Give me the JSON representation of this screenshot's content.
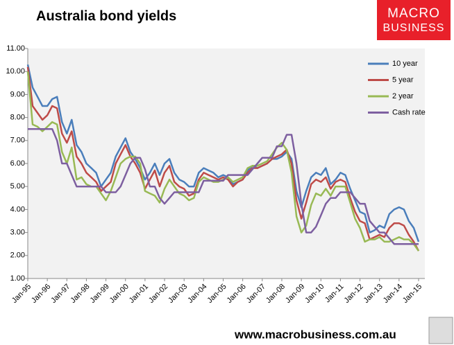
{
  "chart_data": {
    "type": "line",
    "title": "Australia bond yields",
    "categories": [
      "Jan-95",
      null,
      null,
      null,
      "Jan-96",
      null,
      null,
      null,
      "Jan-97",
      null,
      null,
      null,
      "Jan-98",
      null,
      null,
      null,
      "Jan-99",
      null,
      null,
      null,
      "Jan-00",
      null,
      null,
      null,
      "Jan-01",
      null,
      null,
      null,
      "Jan-02",
      null,
      null,
      null,
      "Jan-03",
      null,
      null,
      null,
      "Jan-04",
      null,
      null,
      null,
      "Jan-05",
      null,
      null,
      null,
      "Jan-06",
      null,
      null,
      null,
      "Jan-07",
      null,
      null,
      null,
      "Jan-08",
      null,
      null,
      null,
      "Jan-09",
      null,
      null,
      null,
      "Jan-10",
      null,
      null,
      null,
      "Jan-11",
      null,
      null,
      null,
      "Jan-12",
      null,
      null,
      null,
      "Jan-13",
      null,
      null,
      null,
      "Jan-14",
      null,
      null,
      null,
      "Jan-15"
    ],
    "series": [
      {
        "name": "10 year",
        "color": "#4a7ebb",
        "values": [
          10.3,
          9.3,
          8.9,
          8.5,
          8.5,
          8.8,
          8.9,
          7.8,
          7.3,
          7.9,
          6.8,
          6.5,
          6.0,
          5.8,
          5.6,
          5.0,
          5.3,
          5.6,
          6.3,
          6.7,
          7.1,
          6.5,
          6.2,
          5.8,
          5.3,
          5.6,
          6.0,
          5.5,
          6.0,
          6.2,
          5.6,
          5.3,
          5.2,
          5.0,
          5.0,
          5.6,
          5.8,
          5.7,
          5.6,
          5.4,
          5.5,
          5.4,
          5.1,
          5.2,
          5.3,
          5.7,
          5.9,
          5.8,
          5.9,
          6.0,
          6.2,
          6.2,
          6.3,
          6.5,
          6.2,
          4.8,
          4.1,
          4.8,
          5.4,
          5.6,
          5.5,
          5.8,
          5.1,
          5.3,
          5.6,
          5.5,
          4.9,
          4.4,
          3.9,
          3.8,
          3.0,
          3.1,
          3.3,
          3.2,
          3.8,
          4.0,
          4.1,
          4.0,
          3.5,
          3.2,
          2.6
        ]
      },
      {
        "name": "5 year",
        "color": "#be4b48",
        "values": [
          10.2,
          8.5,
          8.2,
          7.9,
          8.1,
          8.5,
          8.4,
          7.3,
          6.9,
          7.4,
          6.3,
          6.0,
          5.6,
          5.4,
          5.2,
          4.8,
          5.0,
          5.2,
          6.0,
          6.4,
          6.8,
          6.3,
          6.0,
          5.6,
          4.9,
          5.3,
          5.7,
          5.0,
          5.6,
          5.9,
          5.2,
          5.0,
          4.9,
          4.6,
          4.7,
          5.3,
          5.6,
          5.5,
          5.4,
          5.3,
          5.4,
          5.3,
          5.0,
          5.2,
          5.3,
          5.6,
          5.8,
          5.8,
          5.9,
          6.0,
          6.2,
          6.3,
          6.4,
          6.6,
          6.0,
          4.4,
          3.6,
          4.3,
          5.1,
          5.3,
          5.2,
          5.4,
          4.9,
          5.2,
          5.3,
          5.2,
          4.5,
          3.9,
          3.5,
          3.4,
          2.7,
          2.8,
          2.9,
          2.8,
          3.2,
          3.4,
          3.4,
          3.3,
          2.9,
          2.6,
          2.2
        ]
      },
      {
        "name": "2 year",
        "color": "#98b954",
        "values": [
          10.0,
          7.7,
          7.6,
          7.4,
          7.6,
          7.8,
          7.7,
          6.5,
          6.0,
          6.7,
          5.3,
          5.4,
          5.1,
          5.0,
          5.0,
          4.7,
          4.4,
          4.8,
          5.4,
          6.0,
          6.2,
          6.3,
          6.3,
          6.0,
          4.8,
          4.7,
          4.6,
          4.3,
          4.9,
          5.3,
          5.0,
          4.7,
          4.6,
          4.4,
          4.5,
          5.2,
          5.4,
          5.3,
          5.2,
          5.2,
          5.3,
          5.4,
          5.2,
          5.3,
          5.4,
          5.8,
          5.9,
          5.9,
          6.0,
          6.1,
          6.4,
          6.7,
          6.9,
          6.6,
          5.6,
          3.7,
          3.0,
          3.3,
          4.2,
          4.7,
          4.6,
          4.9,
          4.6,
          5.0,
          5.0,
          5.0,
          4.3,
          3.6,
          3.2,
          2.6,
          2.7,
          2.7,
          2.8,
          2.6,
          2.6,
          2.7,
          2.8,
          2.7,
          2.7,
          2.5,
          2.2
        ]
      },
      {
        "name": "Cash rate",
        "color": "#7d5fa0",
        "values": [
          7.5,
          7.5,
          7.5,
          7.5,
          7.5,
          7.5,
          7.0,
          6.0,
          6.0,
          5.5,
          5.0,
          5.0,
          5.0,
          5.0,
          5.0,
          5.0,
          4.75,
          4.75,
          4.75,
          5.0,
          5.5,
          6.0,
          6.25,
          6.25,
          5.75,
          5.0,
          5.0,
          4.5,
          4.25,
          4.5,
          4.75,
          4.75,
          4.75,
          4.75,
          4.75,
          4.75,
          5.25,
          5.25,
          5.25,
          5.25,
          5.25,
          5.5,
          5.5,
          5.5,
          5.5,
          5.5,
          5.75,
          6.0,
          6.25,
          6.25,
          6.25,
          6.75,
          6.75,
          7.25,
          7.25,
          6.0,
          4.25,
          3.0,
          3.0,
          3.25,
          3.75,
          4.25,
          4.5,
          4.5,
          4.75,
          4.75,
          4.75,
          4.5,
          4.25,
          4.25,
          3.5,
          3.25,
          3.0,
          3.0,
          2.75,
          2.5,
          2.5,
          2.5,
          2.5,
          2.5,
          2.5
        ]
      }
    ],
    "ylim": [
      1,
      11
    ],
    "yticks": [
      {
        "value": 1,
        "label": "1.00"
      },
      {
        "value": 2,
        "label": "2.00"
      },
      {
        "value": 3,
        "label": "3.00"
      },
      {
        "value": 4,
        "label": "4.00"
      },
      {
        "value": 5,
        "label": "5.00"
      },
      {
        "value": 6,
        "label": "6.00"
      },
      {
        "value": 7,
        "label": "7.00"
      },
      {
        "value": 8,
        "label": "8.00"
      },
      {
        "value": 9,
        "label": "9.00"
      },
      {
        "value": 10,
        "label": "10.00"
      },
      {
        "value": 11,
        "label": "11.00"
      }
    ],
    "grid": false,
    "legend": "top-right"
  },
  "branding": {
    "logo_top": "MACRO",
    "logo_bottom": "BUSINESS",
    "website": "www.macrobusiness.com.au"
  }
}
